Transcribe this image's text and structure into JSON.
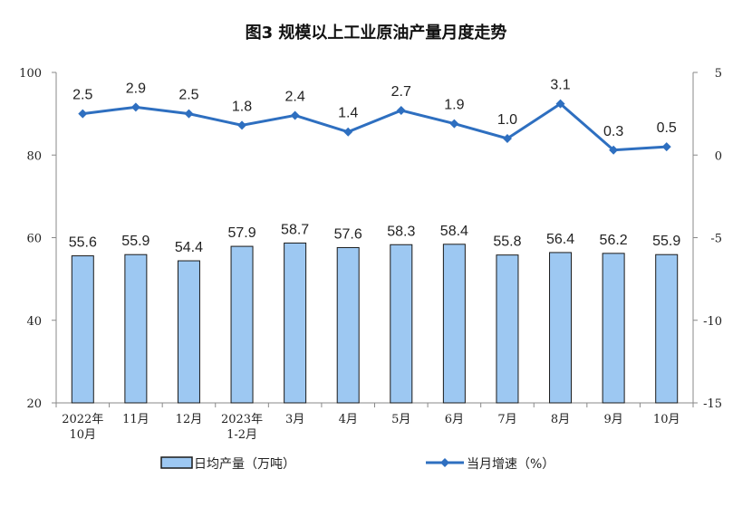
{
  "chart_data": {
    "type": "bar+line",
    "title": "图3 规模以上工业原油产量月度走势",
    "categories": [
      [
        "2022年",
        "10月"
      ],
      [
        "11月"
      ],
      [
        "12月"
      ],
      [
        "2023年",
        "1-2月"
      ],
      [
        "3月"
      ],
      [
        "4月"
      ],
      [
        "5月"
      ],
      [
        "6月"
      ],
      [
        "7月"
      ],
      [
        "8月"
      ],
      [
        "9月"
      ],
      [
        "10月"
      ]
    ],
    "series": [
      {
        "name": "日均产量（万吨）",
        "type": "bar",
        "axis": "left",
        "values": [
          55.6,
          55.9,
          54.4,
          57.9,
          58.7,
          57.6,
          58.3,
          58.4,
          55.8,
          56.4,
          56.2,
          55.9
        ],
        "labels": [
          "55.6",
          "55.9",
          "54.4",
          "57.9",
          "58.7",
          "57.6",
          "58.3",
          "58.4",
          "55.8",
          "56.4",
          "56.2",
          "55.9"
        ]
      },
      {
        "name": "当月增速（%）",
        "type": "line",
        "axis": "right",
        "values": [
          2.5,
          2.9,
          2.5,
          1.8,
          2.4,
          1.4,
          2.7,
          1.9,
          1.0,
          3.1,
          0.3,
          0.5
        ],
        "labels": [
          "2.5",
          "2.9",
          "2.5",
          "1.8",
          "2.4",
          "1.4",
          "2.7",
          "1.9",
          "1.0",
          "3.1",
          "0.3",
          "0.5"
        ]
      }
    ],
    "ylim_left": [
      20,
      100
    ],
    "yticks_left": [
      "20",
      "40",
      "60",
      "80",
      "100"
    ],
    "ylim_right": [
      -15,
      5
    ],
    "yticks_right": [
      "-15",
      "-10",
      "-5",
      "0",
      "5"
    ],
    "legend_position": "bottom",
    "colors": {
      "bar_fill": "#9dc8f2",
      "bar_stroke": "#1a1a1a",
      "line": "#2e6fc0"
    }
  }
}
